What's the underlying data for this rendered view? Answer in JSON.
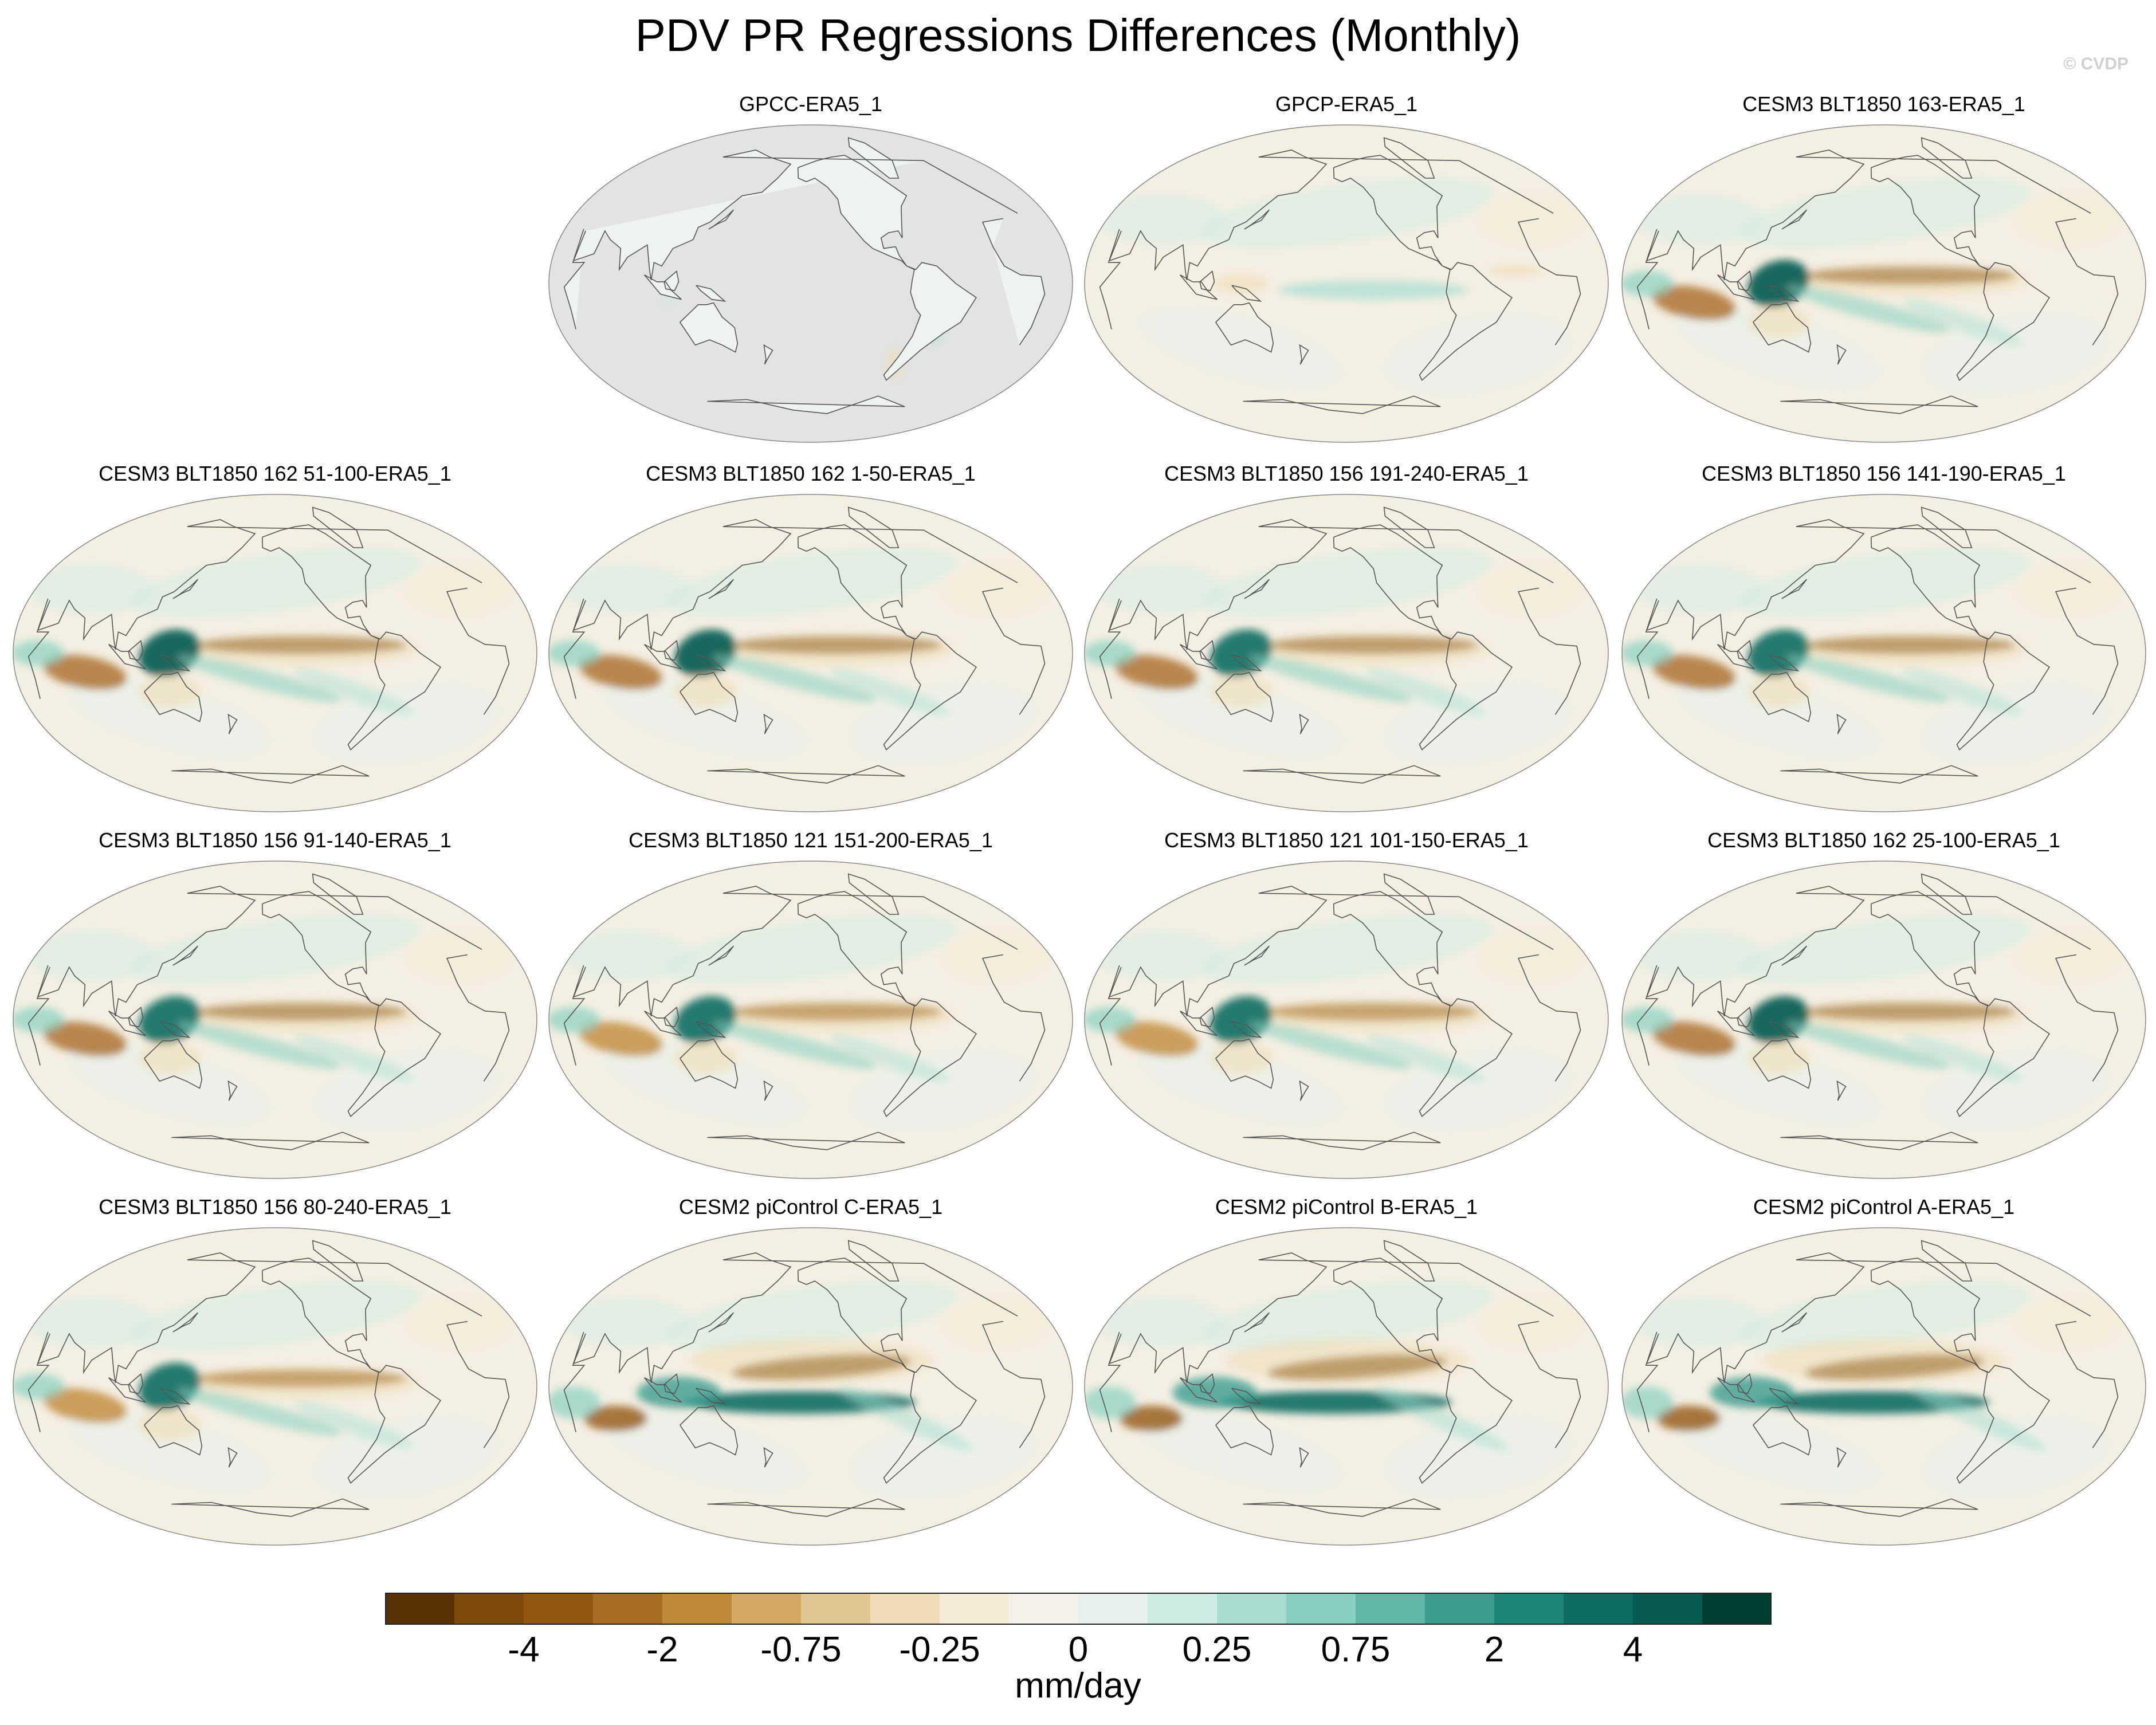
{
  "title": "PDV PR Regressions Differences (Monthly)",
  "copyright": "© CVDP",
  "panels": [
    {
      "title": "GPCC-ERA5_1",
      "land_only": true,
      "strength": 0.15,
      "pattern": 0
    },
    {
      "title": "GPCP-ERA5_1",
      "land_only": false,
      "strength": 0.3,
      "pattern": 1
    },
    {
      "title": "CESM3 BLT1850 163-ERA5_1",
      "land_only": false,
      "strength": 0.9,
      "pattern": 2
    },
    {
      "title": "CESM3 BLT1850 162 51-100-ERA5_1",
      "land_only": false,
      "strength": 0.95,
      "pattern": 2
    },
    {
      "title": "CESM3 BLT1850 162 1-50-ERA5_1",
      "land_only": false,
      "strength": 0.85,
      "pattern": 2
    },
    {
      "title": "CESM3 BLT1850 156 191-240-ERA5_1",
      "land_only": false,
      "strength": 0.8,
      "pattern": 2
    },
    {
      "title": "CESM3 BLT1850 156 141-190-ERA5_1",
      "land_only": false,
      "strength": 0.8,
      "pattern": 2
    },
    {
      "title": "CESM3 BLT1850 156 91-140-ERA5_1",
      "land_only": false,
      "strength": 0.8,
      "pattern": 2
    },
    {
      "title": "CESM3 BLT1850 121 151-200-ERA5_1",
      "land_only": false,
      "strength": 0.75,
      "pattern": 2
    },
    {
      "title": "CESM3 BLT1850 121 101-150-ERA5_1",
      "land_only": false,
      "strength": 0.75,
      "pattern": 2
    },
    {
      "title": "CESM3 BLT1850 162 25-100-ERA5_1",
      "land_only": false,
      "strength": 0.85,
      "pattern": 2
    },
    {
      "title": "CESM3 BLT1850 156 80-240-ERA5_1",
      "land_only": false,
      "strength": 0.75,
      "pattern": 2
    },
    {
      "title": "CESM2 piControl C-ERA5_1",
      "land_only": false,
      "strength": 0.9,
      "pattern": 3
    },
    {
      "title": "CESM2 piControl B-ERA5_1",
      "land_only": false,
      "strength": 0.95,
      "pattern": 3
    },
    {
      "title": "CESM2 piControl A-ERA5_1",
      "land_only": false,
      "strength": 0.9,
      "pattern": 3
    }
  ],
  "colorbar": {
    "colors": [
      "#5a3005",
      "#7e4a0c",
      "#935711",
      "#a96c24",
      "#c0893a",
      "#d2a862",
      "#e2c68f",
      "#efdcb6",
      "#f5ebd6",
      "#f3f1ea",
      "#e6f1ee",
      "#cdeae3",
      "#a8ddd1",
      "#87d0c0",
      "#5fb7a8",
      "#3c9c8e",
      "#1d8578",
      "#0e6d62",
      "#065a4f",
      "#023d34"
    ],
    "labels": [
      "-4",
      "-2",
      "-0.75",
      "-0.25",
      "0",
      "0.25",
      "0.75",
      "2",
      "4"
    ],
    "units": "mm/day",
    "ocean_gray": "#e3e3e3",
    "coast": "#555555"
  }
}
